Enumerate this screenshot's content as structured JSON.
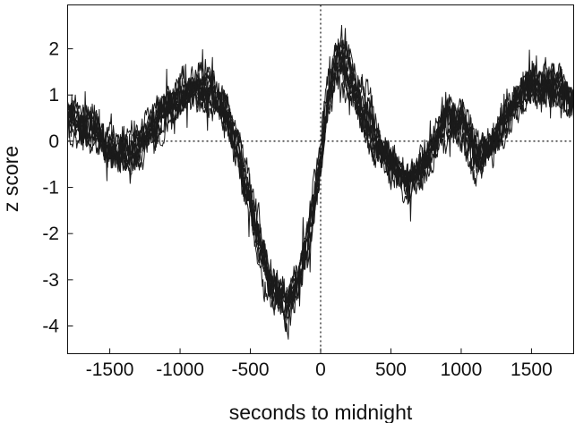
{
  "chart_data": {
    "type": "line",
    "title": "",
    "xlabel": "seconds to midnight",
    "ylabel": "z score",
    "xlim": [
      -1800,
      1800
    ],
    "ylim": [
      -4.6,
      2.95
    ],
    "grid": false,
    "legend": "none",
    "line_color": "#1a1a1a",
    "x_ticks": [
      -1500,
      -1000,
      -500,
      0,
      500,
      1000,
      1500
    ],
    "x_tick_labels": [
      "-1500",
      "-1000",
      "-500",
      "0",
      "500",
      "1000",
      "1500"
    ],
    "y_ticks": [
      -4,
      -3,
      -2,
      -1,
      0,
      1,
      2
    ],
    "y_tick_labels": [
      "-4",
      "-3",
      "-2",
      "-1",
      "0",
      "1",
      "2"
    ],
    "reference_lines": [
      {
        "orientation": "horizontal",
        "value": 0,
        "style": "dotted"
      },
      {
        "orientation": "vertical",
        "value": 0,
        "style": "dotted"
      }
    ],
    "series_count": 10,
    "mean_curve": {
      "x": [
        -1800,
        -1700,
        -1600,
        -1500,
        -1400,
        -1300,
        -1200,
        -1100,
        -1000,
        -900,
        -800,
        -700,
        -600,
        -500,
        -400,
        -300,
        -250,
        -200,
        -150,
        -100,
        -50,
        0,
        50,
        100,
        150,
        200,
        300,
        400,
        500,
        600,
        700,
        800,
        900,
        1000,
        1100,
        1200,
        1300,
        1400,
        1500,
        1600,
        1700,
        1800
      ],
      "y": [
        0.5,
        0.3,
        0.1,
        -0.2,
        -0.3,
        -0.1,
        0.3,
        0.6,
        0.9,
        1.1,
        1.1,
        0.7,
        -0.2,
        -1.5,
        -2.8,
        -3.4,
        -3.6,
        -3.3,
        -2.9,
        -2.2,
        -1.3,
        -0.3,
        1.0,
        1.6,
        1.7,
        1.4,
        0.6,
        0.0,
        -0.6,
        -0.9,
        -0.7,
        -0.1,
        0.5,
        0.3,
        -0.3,
        -0.2,
        0.4,
        1.0,
        1.3,
        1.2,
        1.1,
        0.8
      ]
    }
  }
}
